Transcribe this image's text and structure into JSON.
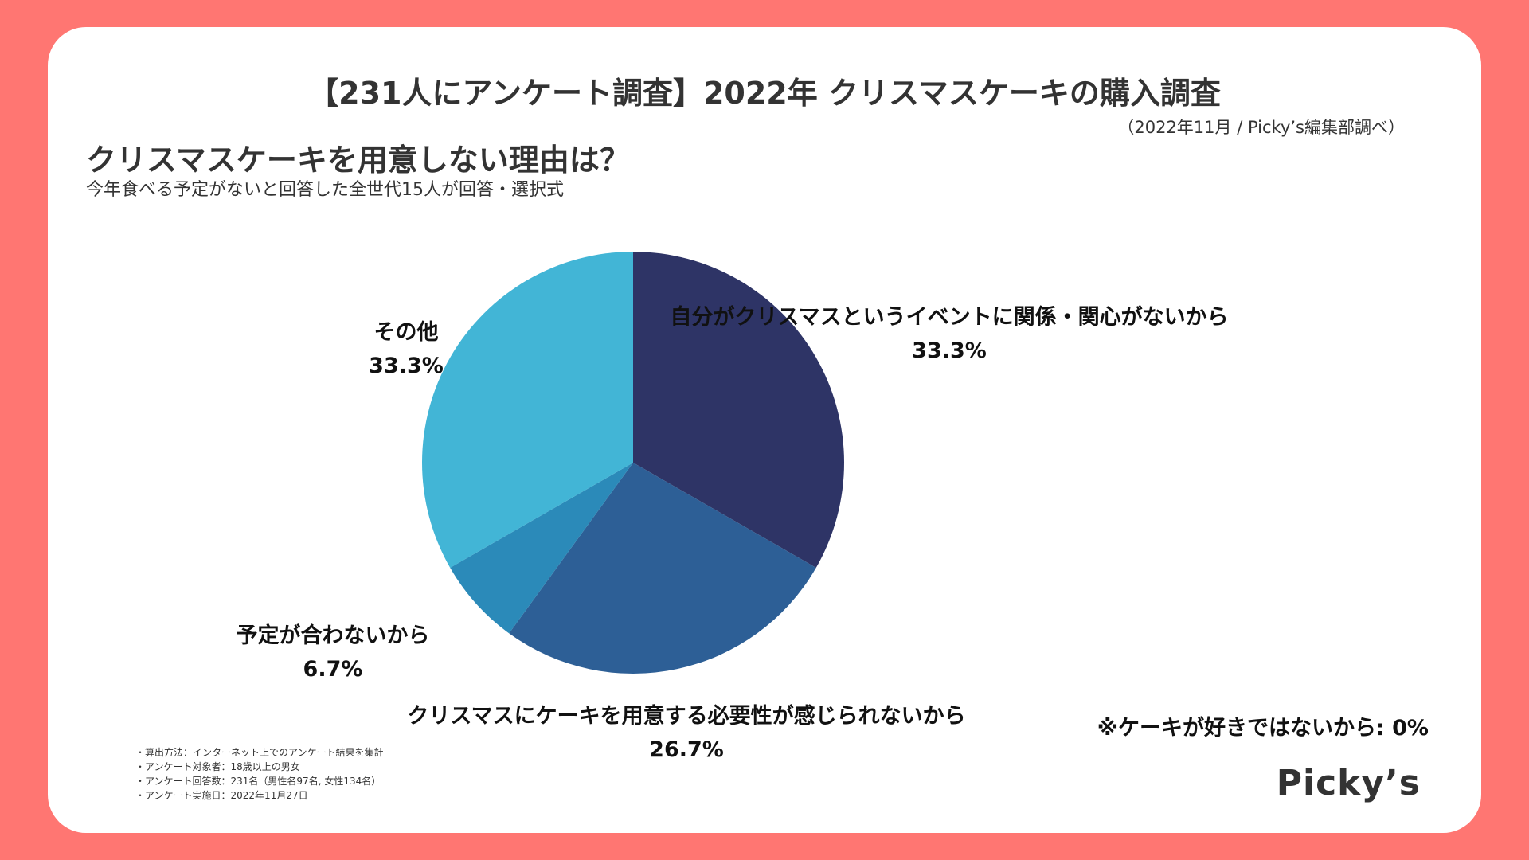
{
  "header": {
    "title": "【231人にアンケート調査】2022年 クリスマスケーキの購入調査",
    "source": "（2022年11月 / Picky’s編集部調べ）"
  },
  "question": {
    "title": "クリスマスケーキを用意しない理由は？",
    "subtitle": "今年食べる予定がないと回答した全世代15人が回答・選択式"
  },
  "chart_data": {
    "type": "pie",
    "unit": "%",
    "slices": [
      {
        "label": "自分がクリスマスというイベントに関係・関心がないから",
        "value": 33.3,
        "value_label": "33.3%",
        "color": "#2e3466"
      },
      {
        "label": "クリスマスにケーキを用意する必要性が感じられないから",
        "value": 26.7,
        "value_label": "26.7%",
        "color": "#2d5f96"
      },
      {
        "label": "予定が合わないから",
        "value": 6.7,
        "value_label": "6.7%",
        "color": "#2b8ab9"
      },
      {
        "label": "その他",
        "value": 33.3,
        "value_label": "33.3%",
        "color": "#42b5d6"
      }
    ],
    "note": "※ケーキが好きではないから: 0%"
  },
  "methods": [
    "・算出方法：インターネット上でのアンケート結果を集計",
    "・アンケート対象者：18歳以上の男女",
    "・アンケート回答数：231名（男性名97名, 女性134名）",
    "・アンケート実施日：2022年11月27日"
  ],
  "logo": "Picky’s"
}
